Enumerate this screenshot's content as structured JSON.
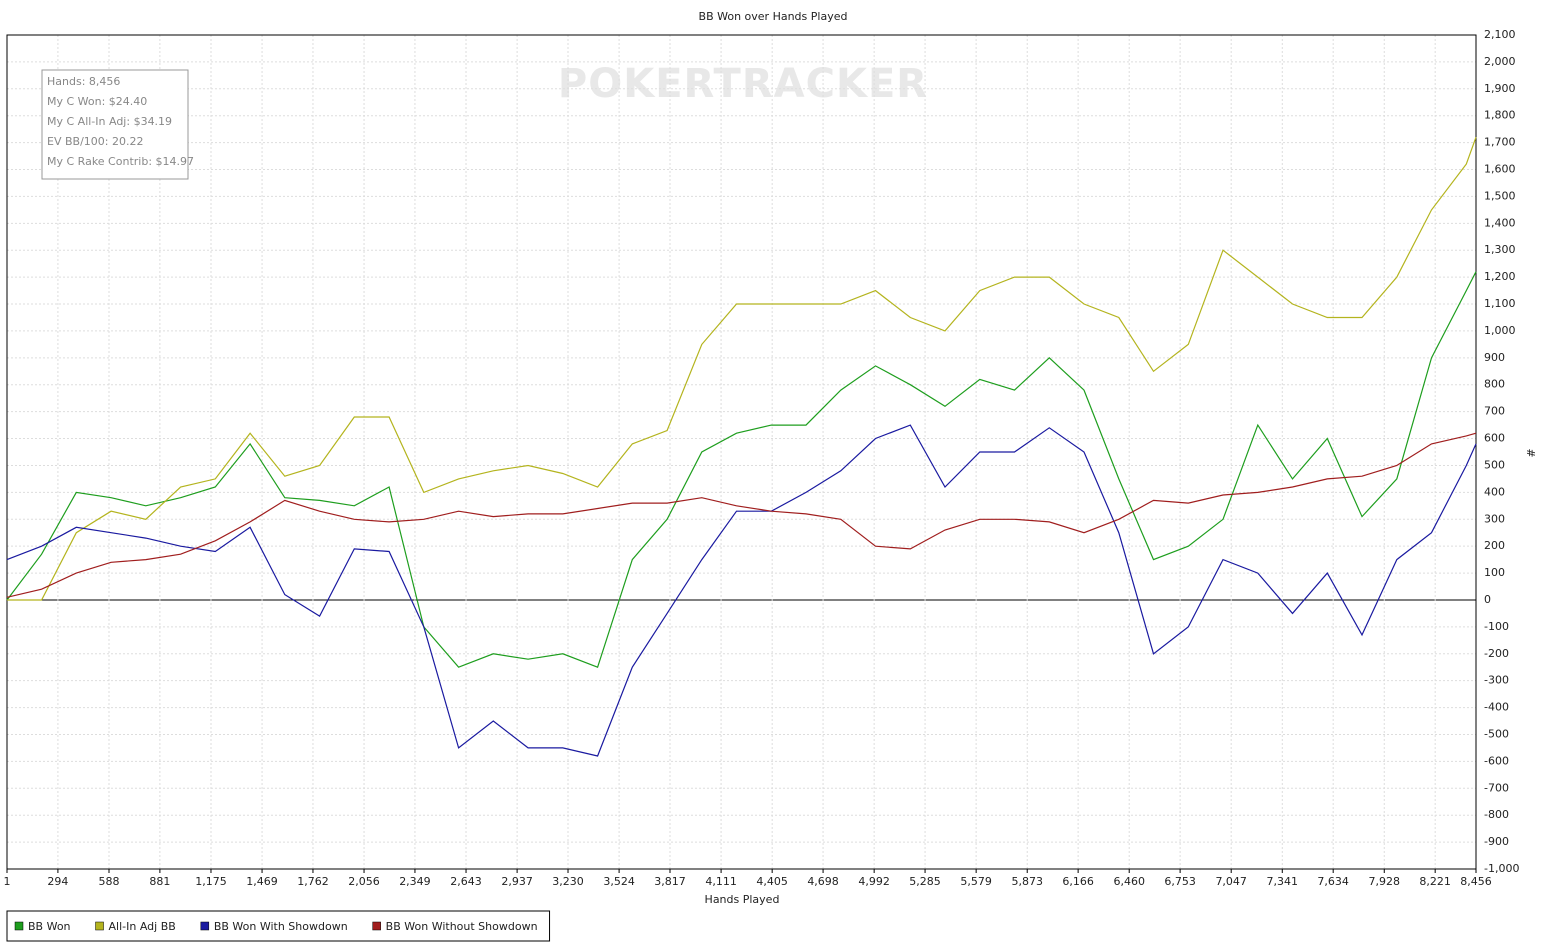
{
  "chart_data": {
    "type": "line",
    "title": "BB Won over Hands Played",
    "x_label": "Hands Played",
    "y_label": "#",
    "watermark": "POKERTRACKER",
    "info_box": [
      "Hands: 8,456",
      "My C Won: $24.40",
      "My C All-In Adj: $34.19",
      "EV BB/100: 20.22",
      "My C Rake Contrib: $14.97"
    ],
    "x": [
      1,
      200,
      400,
      600,
      800,
      1000,
      1200,
      1400,
      1600,
      1800,
      2000,
      2200,
      2400,
      2600,
      2800,
      3000,
      3200,
      3400,
      3600,
      3800,
      4000,
      4200,
      4400,
      4600,
      4800,
      5000,
      5200,
      5400,
      5600,
      5800,
      6000,
      6200,
      6400,
      6600,
      6800,
      7000,
      7200,
      7400,
      7600,
      7800,
      8000,
      8200,
      8400,
      8456
    ],
    "series": [
      {
        "name": "BB Won",
        "color": "#1e9e1e",
        "values": [
          0,
          170,
          400,
          380,
          350,
          380,
          420,
          580,
          380,
          370,
          350,
          420,
          -100,
          -250,
          -200,
          -220,
          -200,
          -250,
          150,
          300,
          550,
          620,
          650,
          650,
          780,
          870,
          800,
          720,
          820,
          780,
          900,
          780,
          450,
          150,
          200,
          300,
          650,
          450,
          600,
          310,
          450,
          900,
          1150,
          1220
        ]
      },
      {
        "name": "All-In Adj BB",
        "color": "#b4b41e",
        "values": [
          0,
          0,
          250,
          330,
          300,
          420,
          450,
          620,
          460,
          500,
          680,
          680,
          400,
          450,
          480,
          500,
          470,
          420,
          580,
          630,
          950,
          1100,
          1100,
          1100,
          1100,
          1150,
          1050,
          1000,
          1150,
          1200,
          1200,
          1100,
          1050,
          850,
          950,
          1300,
          1200,
          1100,
          1050,
          1050,
          1200,
          1450,
          1620,
          1720
        ]
      },
      {
        "name": "BB Won With Showdown",
        "color": "#1a1aa0",
        "values": [
          150,
          200,
          270,
          250,
          230,
          200,
          180,
          270,
          20,
          -60,
          190,
          180,
          -100,
          -550,
          -450,
          -550,
          -550,
          -580,
          -250,
          -50,
          150,
          330,
          330,
          400,
          480,
          600,
          650,
          420,
          550,
          550,
          640,
          550,
          250,
          -200,
          -100,
          150,
          100,
          -50,
          100,
          -130,
          150,
          250,
          500,
          580
        ]
      },
      {
        "name": "BB Won Without Showdown",
        "color": "#a01e1e",
        "values": [
          10,
          40,
          100,
          140,
          150,
          170,
          220,
          290,
          370,
          330,
          300,
          290,
          300,
          330,
          310,
          320,
          320,
          340,
          360,
          360,
          380,
          350,
          330,
          320,
          300,
          200,
          190,
          260,
          300,
          300,
          290,
          250,
          300,
          370,
          360,
          390,
          400,
          420,
          450,
          460,
          500,
          580,
          610,
          620
        ]
      }
    ],
    "xlim": [
      1,
      8456
    ],
    "xticks": [
      1,
      {
        "value": 294,
        "label": "294"
      },
      {
        "value": 588,
        "label": "588"
      },
      {
        "value": 881,
        "label": "881"
      },
      {
        "value": 1175,
        "label": "1,175"
      },
      {
        "value": 1469,
        "label": "1,469"
      },
      {
        "value": 1762,
        "label": "1,762"
      },
      {
        "value": 2056,
        "label": "2,056"
      },
      {
        "value": 2349,
        "label": "2,349"
      },
      {
        "value": 2643,
        "label": "2,643"
      },
      {
        "value": 2937,
        "label": "2,937"
      },
      {
        "value": 3230,
        "label": "3,230"
      },
      {
        "value": 3524,
        "label": "3,524"
      },
      {
        "value": 3817,
        "label": "3,817"
      },
      {
        "value": 4111,
        "label": "4,111"
      },
      {
        "value": 4405,
        "label": "4,405"
      },
      {
        "value": 4698,
        "label": "4,698"
      },
      {
        "value": 4992,
        "label": "4,992"
      },
      {
        "value": 5285,
        "label": "5,285"
      },
      {
        "value": 5579,
        "label": "5,579"
      },
      {
        "value": 5873,
        "label": "5,873"
      },
      {
        "value": 6166,
        "label": "6,166"
      },
      {
        "value": 6460,
        "label": "6,460"
      },
      {
        "value": 6753,
        "label": "6,753"
      },
      {
        "value": 7047,
        "label": "7,047"
      },
      {
        "value": 7341,
        "label": "7,341"
      },
      {
        "value": 7634,
        "label": "7,634"
      },
      {
        "value": 7928,
        "label": "7,928"
      },
      {
        "value": 8221,
        "label": "8,221"
      },
      {
        "value": 8456,
        "label": "8,456"
      }
    ],
    "ylim": [
      -1000,
      2100
    ],
    "yticks": [
      {
        "value": -1000,
        "label": "-1,000"
      },
      -900,
      -800,
      -700,
      -600,
      -500,
      -400,
      -300,
      -200,
      -100,
      0,
      100,
      200,
      300,
      400,
      500,
      600,
      700,
      800,
      900,
      {
        "value": 1000,
        "label": "1,000"
      },
      {
        "value": 1100,
        "label": "1,100"
      },
      {
        "value": 1200,
        "label": "1,200"
      },
      {
        "value": 1300,
        "label": "1,300"
      },
      {
        "value": 1400,
        "label": "1,400"
      },
      {
        "value": 1500,
        "label": "1,500"
      },
      {
        "value": 1600,
        "label": "1,600"
      },
      {
        "value": 1700,
        "label": "1,700"
      },
      {
        "value": 1800,
        "label": "1,800"
      },
      {
        "value": 1900,
        "label": "1,900"
      },
      {
        "value": 2000,
        "label": "2,000"
      },
      {
        "value": 2100,
        "label": "2,100"
      }
    ],
    "grid": true,
    "legend": "bottom-left"
  }
}
